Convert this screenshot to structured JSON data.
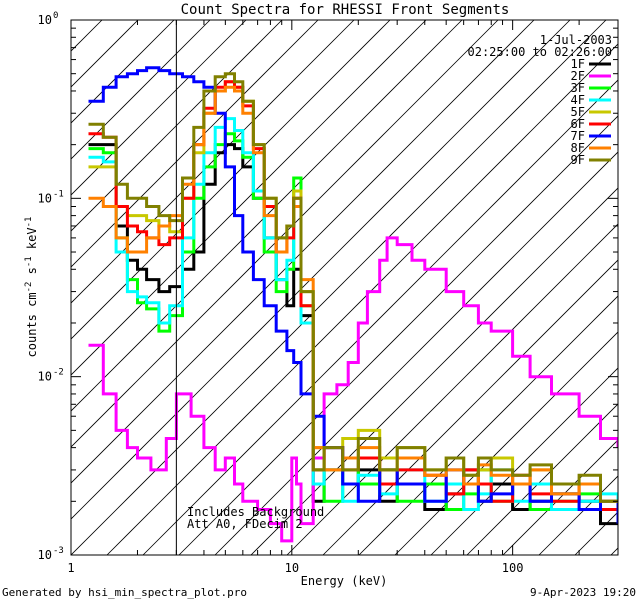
{
  "footer": {
    "generated": "Generated by hsi_min_spectra_plot.pro",
    "timestamp": "9-Apr-2023 19:20"
  },
  "chart_data": {
    "type": "line",
    "title": "Count Spectra for RHESSI Front Segments",
    "xlabel": "Energy (keV)",
    "ylabel_parts": {
      "pre": "counts cm",
      "e1": "-2",
      "mid": " s",
      "e2": "-1",
      "post": " keV",
      "e3": "-1"
    },
    "xscale": "log",
    "yscale": "log",
    "xlim": [
      1,
      300
    ],
    "ylim": [
      0.001,
      1
    ],
    "x_ticks": [
      {
        "v": 1,
        "label": "1"
      },
      {
        "v": 10,
        "label": "10"
      },
      {
        "v": 100,
        "label": "100"
      }
    ],
    "y_ticks": [
      {
        "v": 1,
        "base": "10",
        "exp": "0"
      },
      {
        "v": 0.1,
        "base": "10",
        "exp": "-1"
      },
      {
        "v": 0.01,
        "base": "10",
        "exp": "-2"
      },
      {
        "v": 0.001,
        "base": "10",
        "exp": "-3"
      }
    ],
    "hatched_region_max_keV": 3,
    "date_label": "1-Jul-2003",
    "time_range": "02:25:00 to 02:26:00",
    "annotations": [
      "Includes Background",
      "Att A0, FDecim 2"
    ],
    "legend_position": "top-right",
    "series": [
      {
        "name": "1F",
        "color": "#000000",
        "x": [
          1.2,
          1.4,
          1.6,
          1.8,
          2.0,
          2.2,
          2.5,
          2.8,
          3.2,
          3.6,
          4.0,
          4.5,
          5.0,
          5.5,
          6.0,
          6.7,
          7.5,
          8.5,
          9.5,
          10.2,
          11.0,
          12.5,
          14,
          17,
          20,
          25,
          30,
          40,
          50,
          60,
          70,
          80,
          100,
          120,
          150,
          200,
          250,
          300
        ],
        "y": [
          0.2,
          0.2,
          0.07,
          0.045,
          0.04,
          0.035,
          0.03,
          0.032,
          0.04,
          0.05,
          0.12,
          0.18,
          0.2,
          0.19,
          0.15,
          0.1,
          0.06,
          0.035,
          0.025,
          0.04,
          0.022,
          0.002,
          0.003,
          0.0025,
          0.003,
          0.002,
          0.0025,
          0.0018,
          0.0022,
          0.003,
          0.002,
          0.0025,
          0.0018,
          0.002,
          0.0022,
          0.002,
          0.0015,
          0.0018
        ]
      },
      {
        "name": "2F",
        "color": "#ff00ff",
        "x": [
          1.2,
          1.4,
          1.6,
          1.8,
          2.0,
          2.3,
          2.7,
          3.0,
          3.5,
          4.0,
          4.5,
          5.0,
          5.5,
          6.0,
          7.0,
          8.0,
          9.0,
          10.0,
          10.5,
          11.0,
          11.5,
          12.5,
          14.0,
          16.0,
          18.0,
          20.0,
          22.0,
          25.0,
          27.0,
          30.0,
          35.0,
          40.0,
          50.0,
          60.0,
          70.0,
          80.0,
          100.0,
          120.0,
          150.0,
          200.0,
          250.0,
          300.0
        ],
        "y": [
          0.015,
          0.008,
          0.005,
          0.004,
          0.0035,
          0.003,
          0.0045,
          0.008,
          0.006,
          0.004,
          0.003,
          0.0035,
          0.0025,
          0.002,
          0.0018,
          0.0015,
          0.0012,
          0.0035,
          0.0025,
          0.0015,
          0.0015,
          0.0035,
          0.008,
          0.009,
          0.012,
          0.02,
          0.03,
          0.045,
          0.06,
          0.055,
          0.045,
          0.04,
          0.03,
          0.025,
          0.02,
          0.018,
          0.013,
          0.01,
          0.008,
          0.006,
          0.0045,
          0.004
        ]
      },
      {
        "name": "3F",
        "color": "#00ff00",
        "x": [
          1.2,
          1.4,
          1.6,
          1.8,
          2.0,
          2.2,
          2.5,
          2.8,
          3.2,
          3.6,
          4.0,
          4.5,
          5.0,
          5.5,
          6.0,
          6.7,
          7.5,
          8.5,
          9.5,
          10.2,
          11.0,
          12.5,
          14,
          17,
          20,
          25,
          30,
          40,
          50,
          60,
          70,
          80,
          100,
          120,
          150,
          200,
          250,
          300
        ],
        "y": [
          0.19,
          0.18,
          0.06,
          0.035,
          0.026,
          0.024,
          0.018,
          0.022,
          0.05,
          0.1,
          0.15,
          0.2,
          0.23,
          0.21,
          0.17,
          0.1,
          0.05,
          0.03,
          0.04,
          0.13,
          0.025,
          0.003,
          0.002,
          0.0035,
          0.0025,
          0.003,
          0.002,
          0.0025,
          0.0018,
          0.0022,
          0.003,
          0.002,
          0.0025,
          0.0018,
          0.002,
          0.0022,
          0.002,
          0.0016
        ]
      },
      {
        "name": "4F",
        "color": "#00ffff",
        "x": [
          1.2,
          1.4,
          1.6,
          1.8,
          2.0,
          2.2,
          2.5,
          2.8,
          3.2,
          3.6,
          4.0,
          4.5,
          5.0,
          5.5,
          6.0,
          6.7,
          7.5,
          8.5,
          9.5,
          10.2,
          11.0,
          12.5,
          14,
          17,
          20,
          25,
          30,
          40,
          50,
          60,
          70,
          80,
          100,
          120,
          150,
          200,
          250,
          300
        ],
        "y": [
          0.17,
          0.16,
          0.05,
          0.03,
          0.028,
          0.026,
          0.02,
          0.025,
          0.06,
          0.12,
          0.18,
          0.25,
          0.28,
          0.24,
          0.18,
          0.11,
          0.06,
          0.035,
          0.045,
          0.09,
          0.02,
          0.0025,
          0.003,
          0.002,
          0.0028,
          0.0022,
          0.003,
          0.002,
          0.0025,
          0.0018,
          0.0022,
          0.003,
          0.002,
          0.0025,
          0.0018,
          0.002,
          0.0022,
          0.0018
        ]
      },
      {
        "name": "5F",
        "color": "#c8c800",
        "x": [
          1.2,
          1.4,
          1.6,
          1.8,
          2.0,
          2.2,
          2.5,
          2.8,
          3.2,
          3.6,
          4.0,
          4.5,
          5.0,
          5.5,
          6.0,
          6.7,
          7.5,
          8.5,
          9.5,
          10.2,
          11.0,
          12.5,
          14,
          17,
          20,
          25,
          30,
          40,
          50,
          60,
          70,
          80,
          100,
          120,
          150,
          200,
          250,
          300
        ],
        "y": [
          0.15,
          0.15,
          0.09,
          0.08,
          0.08,
          0.075,
          0.07,
          0.065,
          0.1,
          0.18,
          0.3,
          0.4,
          0.45,
          0.42,
          0.35,
          0.2,
          0.1,
          0.06,
          0.07,
          0.11,
          0.03,
          0.004,
          0.003,
          0.0045,
          0.005,
          0.0035,
          0.004,
          0.003,
          0.0035,
          0.0028,
          0.003,
          0.0035,
          0.0025,
          0.003,
          0.0022,
          0.0025,
          0.002,
          0.002
        ]
      },
      {
        "name": "6F",
        "color": "#ff0000",
        "x": [
          1.2,
          1.4,
          1.6,
          1.8,
          2.0,
          2.2,
          2.5,
          2.8,
          3.2,
          3.6,
          4.0,
          4.5,
          5.0,
          5.5,
          6.0,
          6.7,
          7.5,
          8.5,
          9.5,
          10.2,
          11.0,
          12.5,
          14,
          17,
          20,
          25,
          30,
          40,
          50,
          60,
          70,
          80,
          100,
          120,
          150,
          200,
          250,
          300
        ],
        "y": [
          0.23,
          0.22,
          0.09,
          0.07,
          0.065,
          0.06,
          0.055,
          0.06,
          0.1,
          0.2,
          0.32,
          0.42,
          0.45,
          0.42,
          0.33,
          0.19,
          0.09,
          0.05,
          0.06,
          0.1,
          0.025,
          0.003,
          0.004,
          0.003,
          0.0035,
          0.0025,
          0.003,
          0.0028,
          0.0022,
          0.003,
          0.0025,
          0.002,
          0.0028,
          0.0022,
          0.002,
          0.0025,
          0.0018,
          0.0018
        ]
      },
      {
        "name": "7F",
        "color": "#0000ff",
        "x": [
          1.2,
          1.4,
          1.6,
          1.8,
          2.0,
          2.2,
          2.5,
          2.8,
          3.2,
          3.6,
          4.0,
          4.5,
          5.0,
          5.5,
          6.0,
          6.7,
          7.5,
          8.5,
          9.5,
          10.2,
          11.0,
          12.5,
          14,
          17,
          20,
          25,
          30,
          40,
          50,
          60,
          70,
          80,
          100,
          120,
          150,
          200,
          250,
          300
        ],
        "y": [
          0.35,
          0.42,
          0.48,
          0.5,
          0.52,
          0.54,
          0.52,
          0.5,
          0.48,
          0.45,
          0.42,
          0.3,
          0.15,
          0.08,
          0.05,
          0.035,
          0.025,
          0.018,
          0.014,
          0.012,
          0.008,
          0.006,
          0.004,
          0.0025,
          0.002,
          0.003,
          0.0025,
          0.002,
          0.003,
          0.0025,
          0.002,
          0.0022,
          0.0025,
          0.002,
          0.0022,
          0.0018,
          0.002,
          0.0015
        ]
      },
      {
        "name": "8F",
        "color": "#ff8000",
        "x": [
          1.2,
          1.4,
          1.6,
          1.8,
          2.0,
          2.2,
          2.5,
          2.8,
          3.2,
          3.6,
          4.0,
          4.5,
          5.0,
          5.5,
          6.0,
          6.7,
          7.5,
          8.5,
          9.5,
          10.2,
          11.0,
          12.5,
          14,
          17,
          20,
          25,
          30,
          40,
          50,
          60,
          70,
          80,
          100,
          120,
          150,
          200,
          250,
          300
        ],
        "y": [
          0.1,
          0.09,
          0.06,
          0.05,
          0.05,
          0.06,
          0.07,
          0.08,
          0.12,
          0.2,
          0.3,
          0.4,
          0.42,
          0.4,
          0.3,
          0.18,
          0.08,
          0.05,
          0.07,
          0.09,
          0.035,
          0.004,
          0.003,
          0.0035,
          0.004,
          0.003,
          0.0035,
          0.0028,
          0.003,
          0.0025,
          0.0032,
          0.0028,
          0.0025,
          0.003,
          0.0022,
          0.0025,
          0.002,
          0.002
        ]
      },
      {
        "name": "9F",
        "color": "#808000",
        "x": [
          1.2,
          1.4,
          1.6,
          1.8,
          2.0,
          2.2,
          2.5,
          2.8,
          3.2,
          3.6,
          4.0,
          4.5,
          5.0,
          5.5,
          6.0,
          6.7,
          7.5,
          8.5,
          9.5,
          10.2,
          11.0,
          12.5,
          14,
          17,
          20,
          25,
          30,
          40,
          50,
          60,
          70,
          80,
          100,
          120,
          150,
          200,
          250,
          300
        ],
        "y": [
          0.26,
          0.22,
          0.12,
          0.1,
          0.1,
          0.09,
          0.08,
          0.075,
          0.13,
          0.25,
          0.4,
          0.48,
          0.5,
          0.45,
          0.35,
          0.2,
          0.1,
          0.06,
          0.07,
          0.1,
          0.03,
          0.003,
          0.004,
          0.003,
          0.0045,
          0.003,
          0.004,
          0.003,
          0.0035,
          0.0028,
          0.0035,
          0.003,
          0.0028,
          0.0032,
          0.0025,
          0.0028,
          0.002,
          0.002
        ]
      }
    ]
  }
}
